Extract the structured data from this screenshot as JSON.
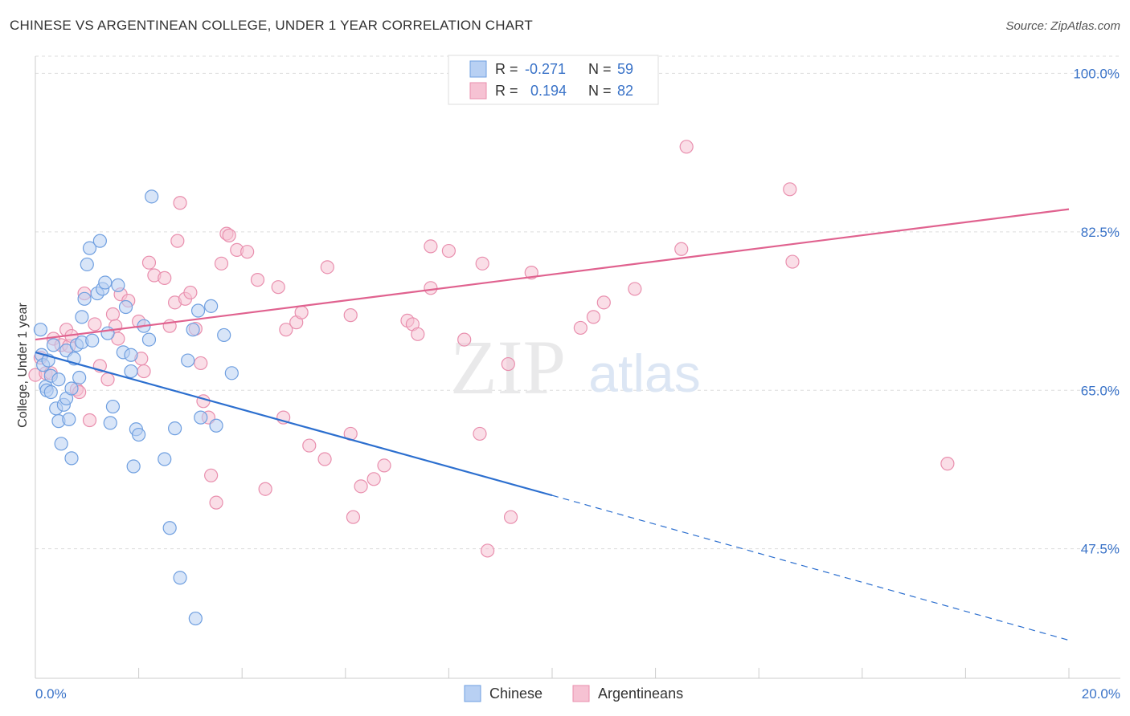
{
  "title": "CHINESE VS ARGENTINEAN COLLEGE, UNDER 1 YEAR CORRELATION CHART",
  "source": "Source: ZipAtlas.com",
  "watermark": {
    "zip": "ZIP",
    "atlas": "atlas"
  },
  "colors": {
    "chinese": "#6f9fe0",
    "chinese_fill": "#b8d0f3",
    "chinese_line": "#2c6fcf",
    "argentinean": "#e98fae",
    "argentinean_fill": "#f6c2d3",
    "argentinean_line": "#e0628f",
    "axis_text": "#3a73c8",
    "grid": "#dddddd"
  },
  "legend": {
    "rows": [
      {
        "series": "chinese",
        "r_label": "R =",
        "r_value": "-0.271",
        "n_label": "N =",
        "n_value": "59"
      },
      {
        "series": "argentinean",
        "r_label": "R =",
        "r_value": "0.194",
        "n_label": "N =",
        "n_value": "82"
      }
    ]
  },
  "chart_data": {
    "type": "scatter",
    "title": "CHINESE VS ARGENTINEAN COLLEGE, UNDER 1 YEAR CORRELATION CHART",
    "xlabel": "",
    "ylabel": "College, Under 1 year",
    "xlim": [
      0,
      20
    ],
    "ylim": [
      33.2,
      101.9
    ],
    "x_tick_labels": [
      "0.0%",
      "20.0%"
    ],
    "y_ticks": [
      47.5,
      65.0,
      82.5,
      100.0
    ],
    "y_tick_labels": [
      "47.5%",
      "65.0%",
      "82.5%",
      "100.0%"
    ],
    "grid": true,
    "legend_position": "bottom-center",
    "series": [
      {
        "name": "Chinese",
        "key": "chinese",
        "points": [
          [
            0.1,
            71.7
          ],
          [
            0.12,
            68.9
          ],
          [
            0.15,
            67.8
          ],
          [
            0.2,
            65.4
          ],
          [
            0.22,
            65.0
          ],
          [
            0.25,
            68.3
          ],
          [
            0.3,
            66.6
          ],
          [
            0.3,
            64.8
          ],
          [
            0.35,
            70.0
          ],
          [
            0.4,
            63.0
          ],
          [
            0.45,
            66.2
          ],
          [
            0.45,
            61.6
          ],
          [
            0.5,
            59.1
          ],
          [
            0.55,
            63.4
          ],
          [
            0.6,
            64.1
          ],
          [
            0.6,
            69.4
          ],
          [
            0.65,
            61.8
          ],
          [
            0.7,
            57.5
          ],
          [
            0.7,
            65.2
          ],
          [
            0.75,
            68.5
          ],
          [
            0.8,
            70.0
          ],
          [
            0.85,
            66.4
          ],
          [
            0.9,
            70.3
          ],
          [
            0.9,
            73.1
          ],
          [
            0.95,
            75.1
          ],
          [
            1.0,
            78.9
          ],
          [
            1.05,
            80.7
          ],
          [
            1.1,
            70.5
          ],
          [
            1.2,
            75.7
          ],
          [
            1.25,
            81.5
          ],
          [
            1.3,
            76.2
          ],
          [
            1.35,
            76.9
          ],
          [
            1.4,
            71.3
          ],
          [
            1.45,
            61.4
          ],
          [
            1.5,
            63.2
          ],
          [
            1.6,
            76.6
          ],
          [
            1.7,
            69.2
          ],
          [
            1.75,
            74.2
          ],
          [
            1.85,
            67.1
          ],
          [
            1.85,
            68.9
          ],
          [
            1.9,
            56.6
          ],
          [
            1.95,
            60.7
          ],
          [
            2.0,
            60.1
          ],
          [
            2.1,
            72.1
          ],
          [
            2.2,
            70.6
          ],
          [
            2.25,
            86.4
          ],
          [
            2.5,
            57.4
          ],
          [
            2.6,
            49.8
          ],
          [
            2.7,
            60.8
          ],
          [
            2.8,
            44.3
          ],
          [
            2.95,
            68.3
          ],
          [
            3.05,
            71.7
          ],
          [
            3.1,
            39.8
          ],
          [
            3.15,
            73.8
          ],
          [
            3.2,
            62.0
          ],
          [
            3.4,
            74.3
          ],
          [
            3.5,
            61.1
          ],
          [
            3.65,
            71.1
          ],
          [
            3.8,
            66.9
          ]
        ]
      },
      {
        "name": "Argentineans",
        "key": "argentinean",
        "points": [
          [
            0.0,
            66.7
          ],
          [
            0.1,
            68.6
          ],
          [
            0.2,
            66.9
          ],
          [
            0.3,
            66.9
          ],
          [
            0.35,
            70.7
          ],
          [
            0.5,
            70.0
          ],
          [
            0.6,
            71.7
          ],
          [
            0.65,
            69.9
          ],
          [
            0.7,
            71.0
          ],
          [
            0.8,
            65.1
          ],
          [
            0.85,
            64.8
          ],
          [
            0.95,
            75.7
          ],
          [
            1.05,
            61.7
          ],
          [
            1.15,
            72.3
          ],
          [
            1.25,
            67.7
          ],
          [
            1.4,
            66.2
          ],
          [
            1.5,
            73.4
          ],
          [
            1.55,
            72.1
          ],
          [
            1.6,
            70.7
          ],
          [
            1.65,
            75.6
          ],
          [
            1.8,
            74.9
          ],
          [
            2.0,
            72.6
          ],
          [
            2.05,
            68.5
          ],
          [
            2.1,
            67.1
          ],
          [
            2.2,
            79.1
          ],
          [
            2.3,
            77.7
          ],
          [
            2.5,
            77.4
          ],
          [
            2.6,
            72.1
          ],
          [
            2.7,
            74.7
          ],
          [
            2.75,
            81.5
          ],
          [
            2.8,
            85.7
          ],
          [
            2.9,
            75.1
          ],
          [
            3.0,
            75.8
          ],
          [
            3.1,
            71.8
          ],
          [
            3.2,
            68.0
          ],
          [
            3.25,
            63.8
          ],
          [
            3.35,
            62.0
          ],
          [
            3.4,
            55.6
          ],
          [
            3.5,
            52.6
          ],
          [
            3.6,
            79.0
          ],
          [
            3.7,
            82.3
          ],
          [
            3.75,
            82.1
          ],
          [
            3.9,
            80.5
          ],
          [
            4.1,
            80.3
          ],
          [
            4.3,
            77.2
          ],
          [
            4.45,
            54.1
          ],
          [
            4.7,
            76.4
          ],
          [
            4.8,
            62.0
          ],
          [
            4.85,
            71.7
          ],
          [
            5.05,
            72.5
          ],
          [
            5.15,
            73.6
          ],
          [
            5.3,
            58.9
          ],
          [
            5.6,
            57.4
          ],
          [
            5.65,
            78.6
          ],
          [
            6.1,
            60.2
          ],
          [
            6.1,
            73.3
          ],
          [
            6.15,
            51.0
          ],
          [
            6.3,
            54.4
          ],
          [
            6.55,
            55.2
          ],
          [
            6.75,
            56.7
          ],
          [
            7.2,
            72.7
          ],
          [
            7.3,
            72.3
          ],
          [
            7.4,
            71.2
          ],
          [
            7.65,
            76.3
          ],
          [
            7.65,
            80.9
          ],
          [
            8.0,
            80.4
          ],
          [
            8.3,
            70.6
          ],
          [
            8.6,
            60.2
          ],
          [
            8.65,
            79.0
          ],
          [
            8.75,
            47.3
          ],
          [
            9.15,
            67.9
          ],
          [
            9.2,
            51.0
          ],
          [
            9.6,
            78.0
          ],
          [
            10.55,
            71.9
          ],
          [
            10.8,
            73.1
          ],
          [
            11.0,
            74.7
          ],
          [
            11.6,
            76.2
          ],
          [
            12.5,
            80.6
          ],
          [
            12.6,
            91.9
          ],
          [
            14.6,
            87.2
          ],
          [
            14.65,
            79.2
          ],
          [
            17.65,
            56.9
          ]
        ]
      }
    ],
    "trendlines": [
      {
        "series": "chinese",
        "x0": 0.0,
        "y0": 69.2,
        "x1": 10.0,
        "y1": 53.4,
        "dashed_extension_to": [
          20.0,
          37.4
        ]
      },
      {
        "series": "argentinean",
        "x0": 0.0,
        "y0": 70.6,
        "x1": 20.0,
        "y1": 85.0
      }
    ]
  }
}
